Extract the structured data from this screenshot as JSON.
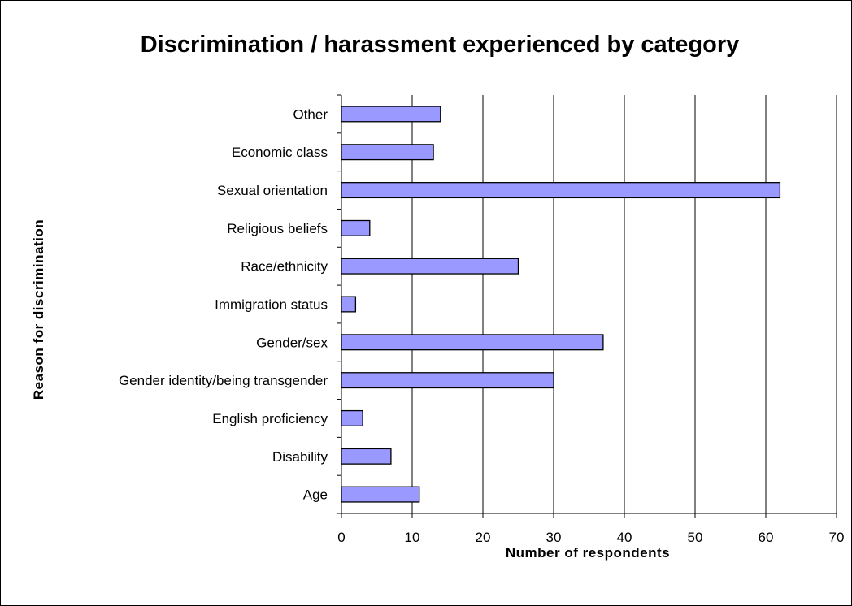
{
  "chart_data": {
    "type": "bar",
    "orientation": "horizontal",
    "title": "Discrimination / harassment experienced by category",
    "xlabel": "Number of respondents",
    "ylabel": "Reason for discrimination",
    "categories": [
      "Age",
      "Disability",
      "English proficiency",
      "Gender identity/being transgender",
      "Gender/sex",
      "Immigration status",
      "Race/ethnicity",
      "Religious beliefs",
      "Sexual orientation",
      "Economic class",
      "Other"
    ],
    "values": [
      11,
      7,
      3,
      30,
      37,
      2,
      25,
      4,
      62,
      13,
      14
    ],
    "xlim": [
      0,
      70
    ],
    "xticks": [
      0,
      10,
      20,
      30,
      40,
      50,
      60,
      70
    ],
    "grid": "vertical gridlines",
    "legend": "none",
    "colors": {
      "bar_fill": "#9999ff",
      "bar_stroke": "#000000",
      "gridline": "#000000",
      "background": "#ffffff"
    }
  }
}
